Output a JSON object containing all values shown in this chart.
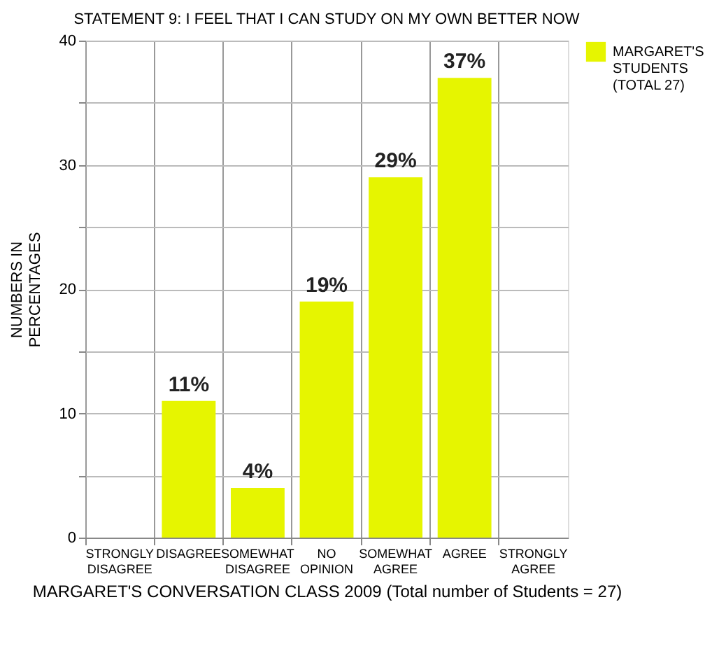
{
  "chart_data": {
    "type": "bar",
    "title": "STATEMENT 9: I FEEL THAT I CAN STUDY ON MY OWN BETTER NOW",
    "xlabel": "MARGARET'S CONVERSATION CLASS 2009 (Total number of Students = 27)",
    "ylabel": "NUMBERS IN PERCENTAGES",
    "categories": [
      "STRONGLY DISAGREE",
      "DISAGREE",
      "SOMEWHAT DISAGREE",
      "NO OPINION",
      "SOMEWHAT AGREE",
      "AGREE",
      "STRONGLY AGREE"
    ],
    "series": [
      {
        "name": "MARGARET'S STUDENTS (TOTAL 27)",
        "color": "#e6f500",
        "values": [
          0,
          11,
          4,
          19,
          29,
          37,
          0
        ],
        "value_labels": [
          null,
          "11%",
          "4%",
          "19%",
          "29%",
          "37%",
          null
        ]
      }
    ],
    "ylim": [
      0,
      40
    ],
    "yticks": [
      0,
      {
        "value": 5,
        "label": null
      },
      10,
      {
        "value": 15,
        "label": null
      },
      20,
      {
        "value": 25,
        "label": null
      },
      30,
      {
        "value": 35,
        "label": null
      },
      40
    ],
    "grid": true,
    "legend": "right"
  }
}
